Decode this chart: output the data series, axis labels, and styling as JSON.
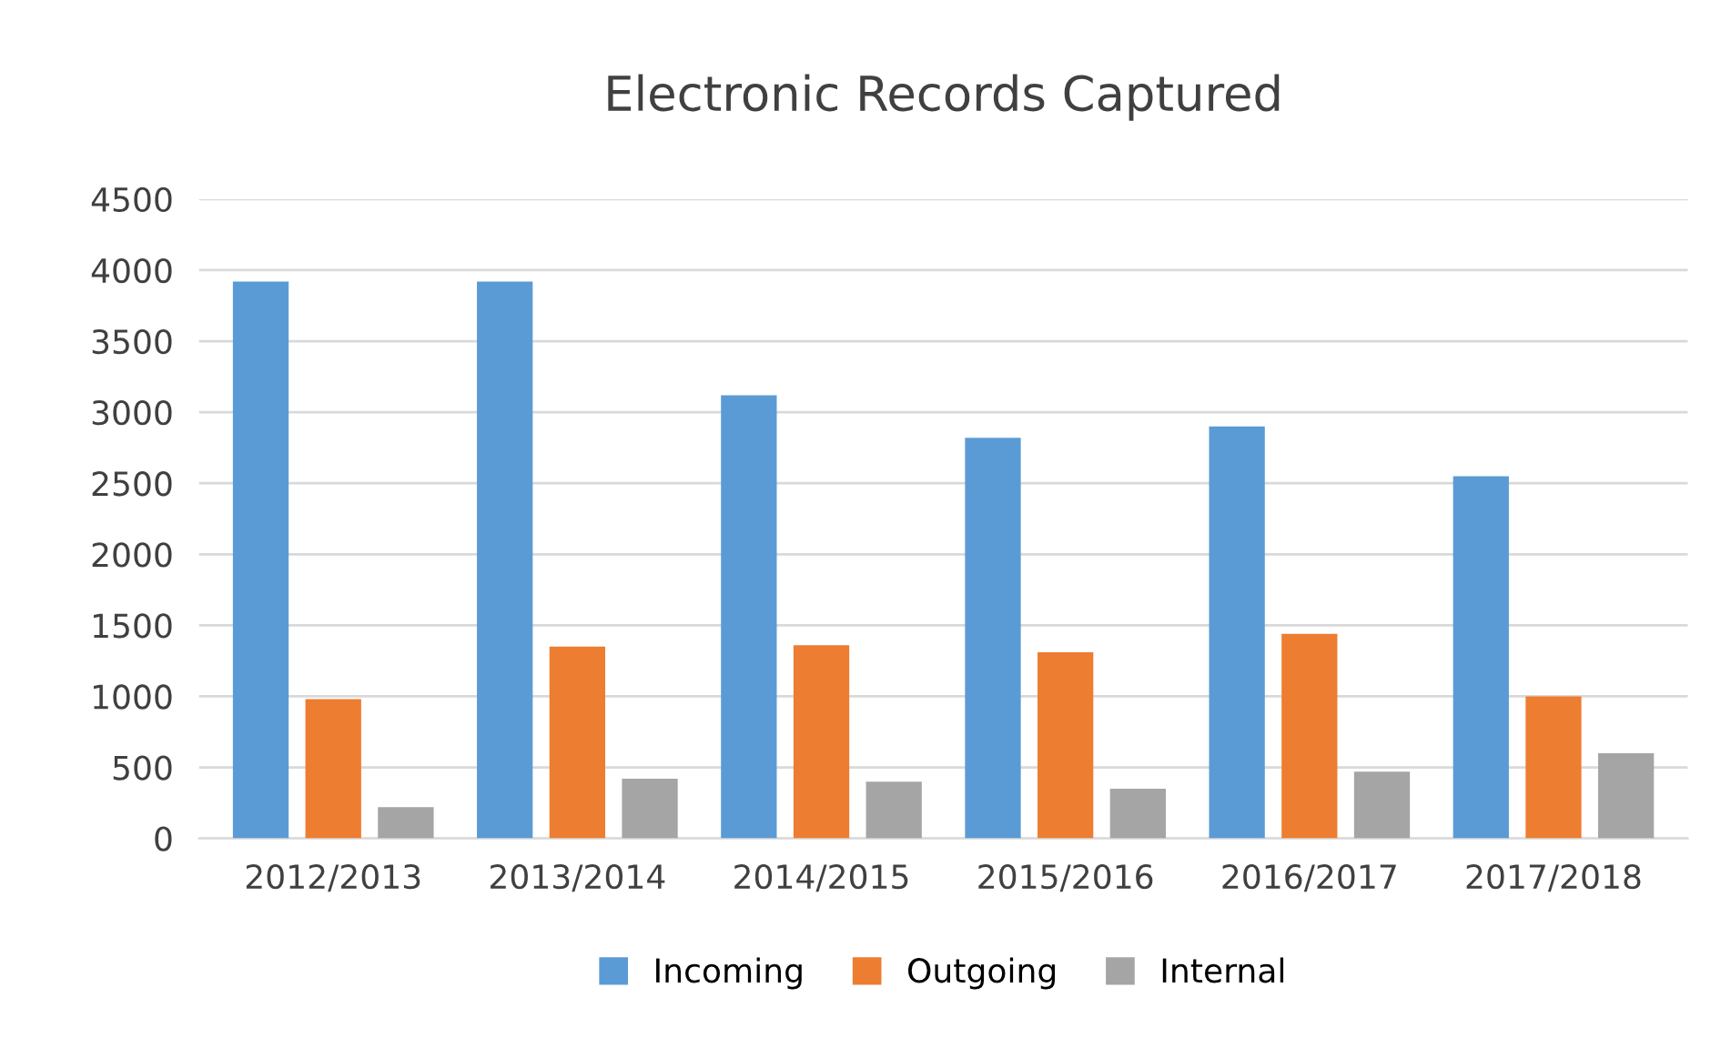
{
  "chart_data": {
    "type": "bar",
    "title": "Electronic Records Captured",
    "categories": [
      "2012/2013",
      "2013/2014",
      "2014/2015",
      "2015/2016",
      "2016/2017",
      "2017/2018"
    ],
    "series": [
      {
        "name": "Incoming",
        "color": "#5b9bd5",
        "values": [
          3920,
          3920,
          3120,
          2820,
          2900,
          2550
        ]
      },
      {
        "name": "Outgoing",
        "color": "#ed7d31",
        "values": [
          980,
          1350,
          1360,
          1310,
          1440,
          1000
        ]
      },
      {
        "name": "Internal",
        "color": "#a5a5a5",
        "values": [
          220,
          420,
          400,
          350,
          470,
          600
        ]
      }
    ],
    "ylim": [
      0,
      4500
    ],
    "yticks": [
      0,
      500,
      1000,
      1500,
      2000,
      2500,
      3000,
      3500,
      4000,
      4500
    ],
    "grid": "y",
    "legend": "bottom"
  }
}
